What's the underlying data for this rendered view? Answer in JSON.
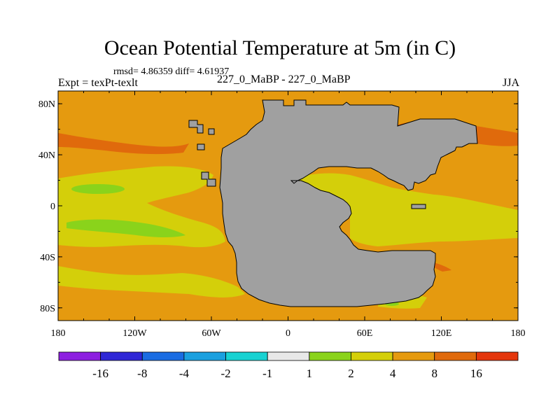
{
  "title": "Ocean Potential Temperature at 5m (in C)",
  "stats": "rmsd= 4.86359 diff= 4.61937",
  "left_label": "Expt = texPt-texlt",
  "center_label": "227_0_MaBP - 227_0_MaBP",
  "right_label": "JJA",
  "x_ticks": [
    "180",
    "120W",
    "60W",
    "0",
    "60E",
    "120E",
    "180"
  ],
  "y_ticks": [
    "80N",
    "40N",
    "0",
    "40S",
    "80S"
  ],
  "colorbar": {
    "colors": [
      "#8d1fe0",
      "#2f27d6",
      "#1a6ce2",
      "#1ba0df",
      "#18d2d2",
      "#e8e8e8",
      "#8ad31b",
      "#d4cf0a",
      "#e59a0f",
      "#e06a0c",
      "#e4360c"
    ],
    "labels": [
      "-16",
      "-8",
      "-4",
      "-2",
      "-1",
      "1",
      "2",
      "4",
      "8",
      "16"
    ]
  },
  "colors": {
    "land": "#a0a0a0",
    "orange_4_8": "#e59a0f",
    "yellow_2_4": "#d4cf0a",
    "green_1_2": "#8ad31b",
    "darkorange_8_16": "#e06a0c",
    "red_16": "#e4360c"
  }
}
